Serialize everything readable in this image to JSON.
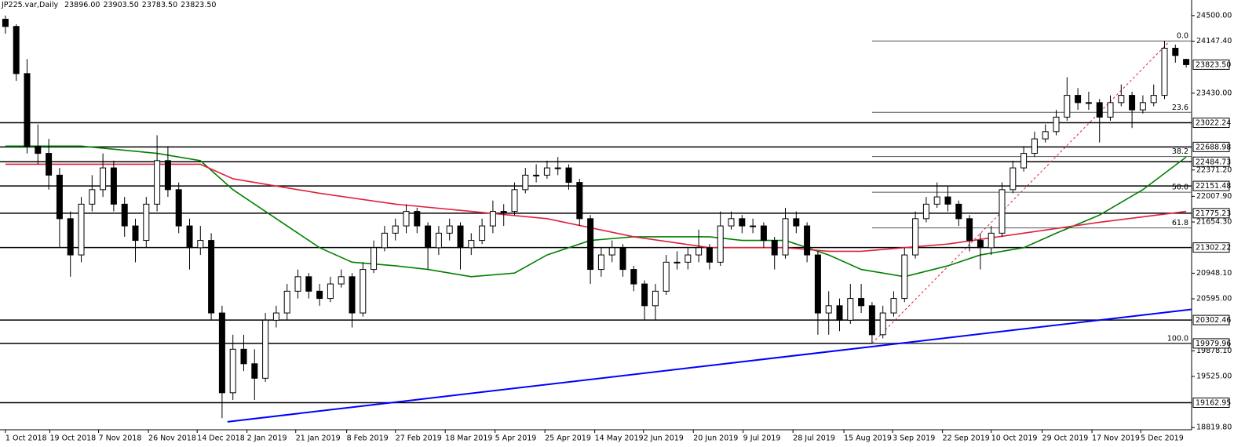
{
  "chart_data": {
    "type": "candlestick",
    "title": "JP225.var,Daily",
    "header_values": [
      "23896.00",
      "23903.50",
      "23783.50",
      "23823.50"
    ],
    "xlim": [
      -0.5,
      109.5
    ],
    "ylim": [
      18790,
      24520
    ],
    "yticks": [
      {
        "value": 24500,
        "label": "24500.00"
      },
      {
        "value": 24147.4,
        "label": "24147.40"
      },
      {
        "value": 23430,
        "label": "23430.00"
      },
      {
        "value": 22371.2,
        "label": "22371.20"
      },
      {
        "value": 22007.9,
        "label": "22007.90"
      },
      {
        "value": 21654.3,
        "label": "21654.30"
      },
      {
        "value": 20948.1,
        "label": "20948.10"
      },
      {
        "value": 20595,
        "label": "20595.00"
      },
      {
        "value": 19878.1,
        "label": "19878.10"
      },
      {
        "value": 19525,
        "label": "19525.00"
      },
      {
        "value": 18819.8,
        "label": "18819.80"
      }
    ],
    "xticks": [
      {
        "value": 0,
        "label": "1 Oct 2018"
      },
      {
        "value": 4.1,
        "label": "19 Oct 2018"
      },
      {
        "value": 8.6,
        "label": "7 Nov 2018"
      },
      {
        "value": 13.2,
        "label": "26 Nov 2018"
      },
      {
        "value": 17.7,
        "label": "14 Dec 2018"
      },
      {
        "value": 22.3,
        "label": "2 Jan 2019"
      },
      {
        "value": 26.8,
        "label": "21 Jan 2019"
      },
      {
        "value": 31.5,
        "label": "8 Feb 2019"
      },
      {
        "value": 36,
        "label": "27 Feb 2019"
      },
      {
        "value": 40.6,
        "label": "18 Mar 2019"
      },
      {
        "value": 45.2,
        "label": "5 Apr 2019"
      },
      {
        "value": 49.8,
        "label": "25 Apr 2019"
      },
      {
        "value": 54.4,
        "label": "14 May 2019"
      },
      {
        "value": 58.9,
        "label": "2 Jun 2019"
      },
      {
        "value": 63.5,
        "label": "20 Jun 2019"
      },
      {
        "value": 68.1,
        "label": "9 Jul 2019"
      },
      {
        "value": 72.7,
        "label": "28 Jul 2019"
      },
      {
        "value": 77.4,
        "label": "15 Aug 2019"
      },
      {
        "value": 81.9,
        "label": "3 Sep 2019"
      },
      {
        "value": 86.5,
        "label": "22 Sep 2019"
      },
      {
        "value": 91,
        "label": "10 Oct 2019"
      },
      {
        "value": 95.7,
        "label": "29 Oct 2019"
      },
      {
        "value": 100.3,
        "label": "17 Nov 2019"
      },
      {
        "value": 104.8,
        "label": "5 Dec 2019"
      }
    ],
    "up_color": "#ffffff",
    "down_color": "#000000",
    "candles": [
      [
        24450,
        24500,
        24250,
        24350
      ],
      [
        24350,
        24380,
        23600,
        23700
      ],
      [
        23700,
        23900,
        22600,
        22700
      ],
      [
        22700,
        23000,
        22450,
        22600
      ],
      [
        22600,
        22800,
        22100,
        22300
      ],
      [
        22300,
        22400,
        21300,
        21700
      ],
      [
        21700,
        21800,
        20900,
        21200
      ],
      [
        21200,
        22000,
        21100,
        21900
      ],
      [
        21900,
        22300,
        21800,
        22100
      ],
      [
        22100,
        22600,
        22000,
        22400
      ],
      [
        22400,
        22500,
        21800,
        21900
      ],
      [
        21900,
        22000,
        21450,
        21600
      ],
      [
        21600,
        21700,
        21100,
        21400
      ],
      [
        21400,
        22000,
        21300,
        21900
      ],
      [
        21900,
        22850,
        21800,
        22500
      ],
      [
        22500,
        22700,
        22000,
        22100
      ],
      [
        22100,
        22200,
        21500,
        21600
      ],
      [
        21600,
        21700,
        21000,
        21300
      ],
      [
        21300,
        21600,
        21200,
        21400
      ],
      [
        21400,
        21500,
        20300,
        20400
      ],
      [
        20400,
        20500,
        18950,
        19300
      ],
      [
        19300,
        20100,
        19200,
        19900
      ],
      [
        19900,
        20100,
        19600,
        19700
      ],
      [
        19700,
        19900,
        19200,
        19500
      ],
      [
        19500,
        20400,
        19450,
        20300
      ],
      [
        20300,
        20500,
        20200,
        20400
      ],
      [
        20400,
        20800,
        20300,
        20700
      ],
      [
        20700,
        21000,
        20600,
        20900
      ],
      [
        20900,
        20950,
        20600,
        20700
      ],
      [
        20700,
        20800,
        20500,
        20600
      ],
      [
        20600,
        20900,
        20550,
        20800
      ],
      [
        20800,
        21000,
        20750,
        20900
      ],
      [
        20900,
        20950,
        20200,
        20400
      ],
      [
        20400,
        21100,
        20350,
        21000
      ],
      [
        21000,
        21400,
        20950,
        21300
      ],
      [
        21300,
        21600,
        21250,
        21500
      ],
      [
        21500,
        21700,
        21400,
        21600
      ],
      [
        21600,
        21900,
        21500,
        21800
      ],
      [
        21800,
        21850,
        21500,
        21600
      ],
      [
        21600,
        21650,
        21000,
        21300
      ],
      [
        21300,
        21600,
        21200,
        21500
      ],
      [
        21500,
        21700,
        21400,
        21600
      ],
      [
        21600,
        21650,
        21000,
        21300
      ],
      [
        21300,
        21500,
        21200,
        21400
      ],
      [
        21400,
        21700,
        21350,
        21600
      ],
      [
        21600,
        21950,
        21500,
        21800
      ],
      [
        21800,
        21900,
        21600,
        21800
      ],
      [
        21800,
        22200,
        21750,
        22100
      ],
      [
        22100,
        22400,
        22050,
        22300
      ],
      [
        22300,
        22450,
        22200,
        22300
      ],
      [
        22300,
        22500,
        22250,
        22400
      ],
      [
        22400,
        22550,
        22300,
        22400
      ],
      [
        22400,
        22450,
        22100,
        22200
      ],
      [
        22200,
        22250,
        21600,
        21700
      ],
      [
        21700,
        21750,
        20800,
        21000
      ],
      [
        21000,
        21300,
        20900,
        21200
      ],
      [
        21200,
        21400,
        21100,
        21300
      ],
      [
        21300,
        21350,
        20900,
        21000
      ],
      [
        21000,
        21050,
        20700,
        20800
      ],
      [
        20800,
        20850,
        20300,
        20500
      ],
      [
        20500,
        20800,
        20300,
        20700
      ],
      [
        20700,
        21200,
        20650,
        21100
      ],
      [
        21100,
        21250,
        21000,
        21100
      ],
      [
        21100,
        21300,
        21000,
        21200
      ],
      [
        21200,
        21550,
        21100,
        21300
      ],
      [
        21300,
        21350,
        21000,
        21100
      ],
      [
        21100,
        21800,
        21050,
        21600
      ],
      [
        21600,
        21800,
        21550,
        21700
      ],
      [
        21700,
        21750,
        21500,
        21600
      ],
      [
        21600,
        21700,
        21500,
        21600
      ],
      [
        21600,
        21650,
        21300,
        21400
      ],
      [
        21400,
        21450,
        21000,
        21200
      ],
      [
        21200,
        21850,
        21150,
        21700
      ],
      [
        21700,
        21800,
        21500,
        21600
      ],
      [
        21600,
        21650,
        21100,
        21200
      ],
      [
        21200,
        21250,
        20100,
        20400
      ],
      [
        20400,
        20700,
        20100,
        20500
      ],
      [
        20500,
        20600,
        20150,
        20300
      ],
      [
        20300,
        20800,
        20250,
        20600
      ],
      [
        20600,
        20800,
        20400,
        20500
      ],
      [
        20500,
        20550,
        19980,
        20100
      ],
      [
        20100,
        20500,
        20050,
        20400
      ],
      [
        20400,
        20700,
        20350,
        20600
      ],
      [
        20600,
        21300,
        20550,
        21200
      ],
      [
        21200,
        21800,
        21150,
        21700
      ],
      [
        21700,
        22000,
        21650,
        21900
      ],
      [
        21900,
        22200,
        21850,
        22000
      ],
      [
        22000,
        22150,
        21800,
        21900
      ],
      [
        21900,
        21950,
        21600,
        21700
      ],
      [
        21700,
        21750,
        21250,
        21400
      ],
      [
        21400,
        21500,
        21000,
        21300
      ],
      [
        21300,
        21600,
        21200,
        21500
      ],
      [
        21500,
        22200,
        21450,
        22100
      ],
      [
        22100,
        22500,
        22050,
        22400
      ],
      [
        22400,
        22700,
        22350,
        22600
      ],
      [
        22600,
        22900,
        22550,
        22800
      ],
      [
        22800,
        23000,
        22750,
        22900
      ],
      [
        22900,
        23200,
        22850,
        23100
      ],
      [
        23100,
        23650,
        23050,
        23400
      ],
      [
        23400,
        23500,
        23200,
        23300
      ],
      [
        23300,
        23450,
        23200,
        23300
      ],
      [
        23300,
        23350,
        22750,
        23100
      ],
      [
        23100,
        23400,
        23050,
        23300
      ],
      [
        23300,
        23550,
        23250,
        23400
      ],
      [
        23400,
        23450,
        22950,
        23200
      ],
      [
        23200,
        23400,
        23150,
        23300
      ],
      [
        23300,
        23550,
        23250,
        23400
      ],
      [
        23400,
        24150,
        23350,
        24050
      ],
      [
        24050,
        24100,
        23850,
        23950
      ],
      [
        23896,
        23903.5,
        23783.5,
        23823.5
      ]
    ],
    "lines": [
      {
        "color": "#008000",
        "x": [
          0,
          7,
          14,
          18,
          21,
          25,
          29,
          32,
          36,
          39,
          43,
          47,
          50,
          54,
          58,
          61,
          65,
          68,
          72,
          76,
          79,
          83,
          87,
          90,
          94,
          97,
          101,
          105,
          109
        ],
        "values": [
          22700,
          22700,
          22600,
          22500,
          22100,
          21700,
          21300,
          21100,
          21050,
          21000,
          20900,
          20950,
          21200,
          21400,
          21450,
          21450,
          21450,
          21400,
          21400,
          21200,
          21000,
          20900,
          21050,
          21200,
          21300,
          21500,
          21750,
          22100,
          22550
        ]
      },
      {
        "color": "#e0203a",
        "x": [
          0,
          7,
          14,
          18,
          21,
          29,
          36,
          43,
          50,
          58,
          65,
          72,
          76,
          79,
          87,
          94,
          101,
          109
        ],
        "values": [
          22450,
          22450,
          22450,
          22450,
          22250,
          22050,
          21900,
          21800,
          21700,
          21450,
          21300,
          21300,
          21250,
          21250,
          21350,
          21500,
          21650,
          21800
        ]
      }
    ],
    "trendline": {
      "color": "#0000ff",
      "x": [
        20.5,
        109.5
      ],
      "values": [
        18900,
        20450
      ]
    },
    "levels": [
      23022.24,
      22688.98,
      22484.73,
      22151.48,
      21775.23,
      21302.22,
      20302.46,
      19979.96,
      19162.95
    ],
    "current_price": {
      "value": 23823.5,
      "label": "23823.50"
    },
    "fibonacci": {
      "start": 80,
      "end": 107.5,
      "high": 24150,
      "low": 19980,
      "color": "#e0203a",
      "levels": [
        {
          "value": 0,
          "label": "0.0"
        },
        {
          "value": 23.6,
          "label": "23.6"
        },
        {
          "value": 38.2,
          "label": "38.2"
        },
        {
          "value": 50,
          "label": "50.0"
        },
        {
          "value": 61.8,
          "label": "61.8"
        },
        {
          "value": 100,
          "label": "100.0"
        }
      ]
    }
  }
}
